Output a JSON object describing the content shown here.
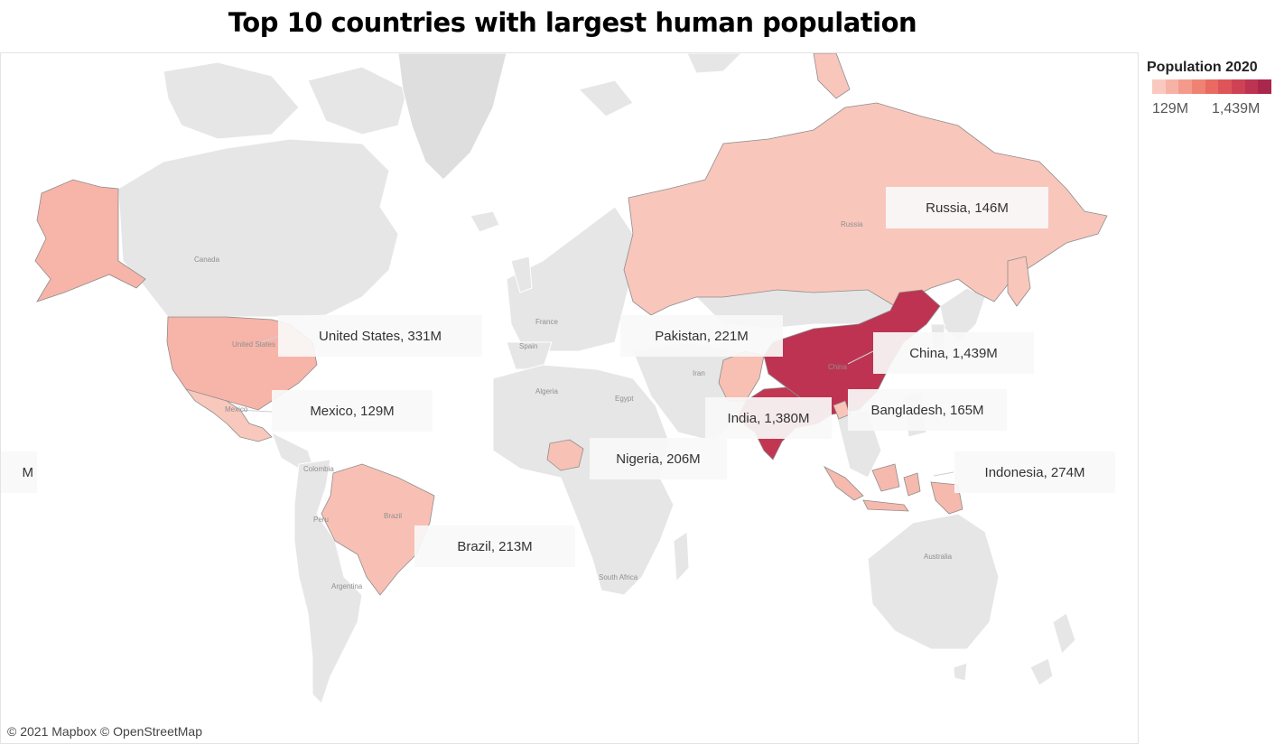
{
  "title": "Top 10 countries with largest human population",
  "legend": {
    "title": "Population 2020",
    "min_label": "129M",
    "max_label": "1,439M",
    "ramp_colors": [
      "#f9c9c0",
      "#f7b2a6",
      "#f49a8c",
      "#f08273",
      "#e86a62",
      "#dd5558",
      "#cf4254",
      "#be3351",
      "#a9274c"
    ]
  },
  "attribution": "© 2021 Mapbox © OpenStreetMap",
  "map_labels": {
    "canada": "Canada",
    "united_states": "United States",
    "mexico": "Mexico",
    "colombia": "Colombia",
    "peru": "Peru",
    "brazil": "Brazil",
    "argentina": "Argentina",
    "france": "France",
    "spain": "Spain",
    "algeria": "Algeria",
    "egypt": "Egypt",
    "south_africa": "South Africa",
    "iran": "Iran",
    "russia": "Russia",
    "china": "China",
    "australia": "Australia"
  },
  "countries": [
    {
      "name": "China",
      "population_m": 1439,
      "label": "China,  1,439M",
      "color": "#be3351"
    },
    {
      "name": "India",
      "population_m": 1380,
      "label": "India,  1,380M",
      "color": "#c23652"
    },
    {
      "name": "United States",
      "population_m": 331,
      "label": "United States, 331M",
      "color": "#f7b4a8"
    },
    {
      "name": "Indonesia",
      "population_m": 274,
      "label": "Indonesia,  274M",
      "color": "#f6b9ad"
    },
    {
      "name": "Pakistan",
      "population_m": 221,
      "label": "Pakistan, 221M",
      "color": "#f8bfb3"
    },
    {
      "name": "Brazil",
      "population_m": 213,
      "label": "Brazil,  213M",
      "color": "#f8c0b4"
    },
    {
      "name": "Nigeria",
      "population_m": 206,
      "label": "Nigeria,  206M",
      "color": "#f8c1b5"
    },
    {
      "name": "Bangladesh",
      "population_m": 165,
      "label": "Bangladesh,  165M",
      "color": "#f9c4b9"
    },
    {
      "name": "Russia",
      "population_m": 146,
      "label": "Russia,  146M",
      "color": "#f9c6bb"
    },
    {
      "name": "Mexico",
      "population_m": 129,
      "label": "Mexico, 129M",
      "color": "#f9c8bd"
    }
  ],
  "offscreen_callout_fragment": "M"
}
